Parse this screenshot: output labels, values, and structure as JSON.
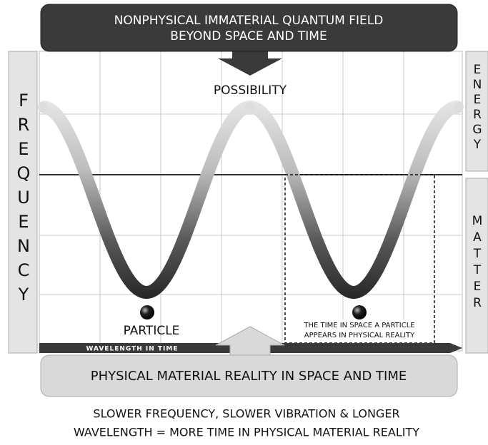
{
  "top_banner": {
    "line1": "NONPHYSICAL IMMATERIAL QUANTUM FIELD",
    "line2": "BEYOND SPACE AND TIME"
  },
  "possibility": "POSSIBILITY",
  "left_axis": "FREQUENCY",
  "right_top": "ENERGY",
  "right_bottom": "MATTER",
  "particle": "PARTICLE",
  "time_box": {
    "line1": "THE TIME IN SPACE A PARTICLE",
    "line2": "APPEARS IN PHYSICAL REALITY"
  },
  "wavelength": "WAVELENGTH IN TIME",
  "bottom_banner": "PHYSICAL MATERIAL REALITY IN SPACE AND TIME",
  "caption": {
    "line1": "SLOWER FREQUENCY, SLOWER VIBRATION & LONGER",
    "line2": "WAVELENGTH = MORE TIME IN PHYSICAL MATERIAL REALITY"
  }
}
